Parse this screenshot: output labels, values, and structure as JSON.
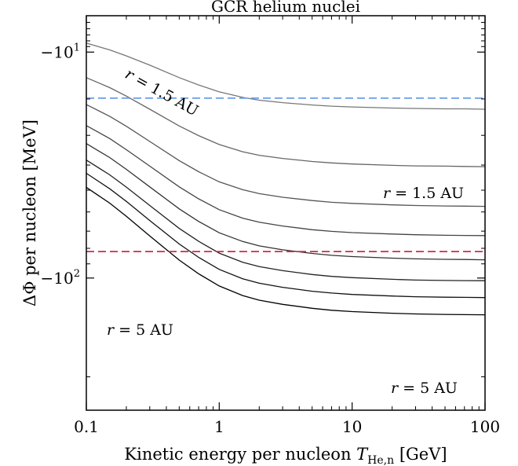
{
  "chart_data": {
    "type": "line",
    "title": "GCR helium nuclei",
    "xlabel": "Kinetic energy per nucleon T_He,n [GeV]",
    "xlabel_main": "Kinetic energy per nucleon ",
    "xlabel_symbol": "T",
    "xlabel_sub": "He,n",
    "xlabel_unit": " [GeV]",
    "ylabel": "ΔΦ per nucleon [MeV]",
    "x_scale": "log",
    "y_scale": "symlog-negative",
    "xlim": [
      0.1,
      100
    ],
    "ylim": [
      -4.0,
      -250.0
    ],
    "x_ticks": [
      {
        "value": 0.1,
        "label": "0.1"
      },
      {
        "value": 1,
        "label": "1"
      },
      {
        "value": 10,
        "label": "10"
      },
      {
        "value": 100,
        "label": "100"
      }
    ],
    "y_ticks": [
      {
        "value": -10,
        "label": "−10",
        "exp": "1"
      },
      {
        "value": -100,
        "label": "−10",
        "exp": "2"
      }
    ],
    "x": [
      0.1,
      0.15,
      0.2,
      0.3,
      0.5,
      0.7,
      1,
      1.5,
      2,
      3,
      5,
      7,
      10,
      20,
      30,
      50,
      70,
      100
    ],
    "series": [
      {
        "color": "#777777",
        "values": [
          -8.4,
          -9.6,
          -10.7,
          -12.5,
          -15.1,
          -16.7,
          -18.3,
          -19.6,
          -20.3,
          -20.9,
          -21.5,
          -21.8,
          -22.0,
          -22.3,
          -22.4,
          -22.5,
          -22.5,
          -22.6
        ]
      },
      {
        "color": "#666666",
        "values": [
          -15.1,
          -17.3,
          -19.3,
          -22.6,
          -27.2,
          -30.1,
          -32.9,
          -35.3,
          -36.5,
          -37.6,
          -38.7,
          -39.2,
          -39.6,
          -40.1,
          -40.3,
          -40.4,
          -40.5,
          -40.6
        ]
      },
      {
        "color": "#555555",
        "values": [
          -21.4,
          -24.5,
          -27.3,
          -31.9,
          -38.4,
          -42.5,
          -46.5,
          -49.8,
          -51.5,
          -53.1,
          -54.6,
          -55.4,
          -55.9,
          -56.6,
          -56.9,
          -57.1,
          -57.2,
          -57.3
        ]
      },
      {
        "color": "#444444",
        "values": [
          -27.1,
          -31.0,
          -34.6,
          -40.4,
          -48.6,
          -53.8,
          -58.9,
          -63.1,
          -65.2,
          -67.2,
          -69.2,
          -70.1,
          -70.8,
          -71.6,
          -72.0,
          -72.3,
          -72.4,
          -72.5
        ]
      },
      {
        "color": "#333333",
        "values": [
          -32.6,
          -37.3,
          -41.6,
          -48.6,
          -58.5,
          -64.8,
          -70.9,
          -75.9,
          -78.5,
          -80.9,
          -83.2,
          -84.4,
          -85.2,
          -86.2,
          -86.7,
          -87.0,
          -87.1,
          -87.3
        ]
      },
      {
        "color": "#222222",
        "values": [
          -38.2,
          -43.7,
          -48.7,
          -56.9,
          -68.5,
          -75.8,
          -83.0,
          -88.9,
          -91.9,
          -94.7,
          -97.4,
          -98.8,
          -99.7,
          -100.9,
          -101.5,
          -101.8,
          -101.9,
          -102.0
        ]
      },
      {
        "color": "#111111",
        "values": [
          -43.1,
          -49.4,
          -55.0,
          -64.3,
          -77.4,
          -85.7,
          -93.8,
          -100.5,
          -103.9,
          -107.0,
          -110.1,
          -111.6,
          -112.7,
          -114.0,
          -114.6,
          -115.0,
          -115.1,
          -115.3
        ]
      },
      {
        "color": "#000000",
        "values": [
          -48.8,
          -55.8,
          -62.2,
          -72.7,
          -87.5,
          -96.9,
          -106.0,
          -113.6,
          -117.5,
          -121.0,
          -124.5,
          -126.2,
          -127.4,
          -128.9,
          -129.6,
          -130.0,
          -130.2,
          -130.4
        ]
      }
    ],
    "reference_lines": [
      {
        "y": -19.8,
        "color": "#6a9ee8",
        "style": "dashed",
        "label": "= 1.5 AU"
      },
      {
        "y": -82.0,
        "color": "#d1284b",
        "style": "dashed",
        "label": "= 5 AU"
      }
    ],
    "annotations": [
      {
        "text": "= 1.5 AU",
        "color": "#777777",
        "rotation": "diagonal"
      },
      {
        "text": "= 5 AU",
        "color": "#000000",
        "rotation": "none"
      }
    ],
    "annotation_symbol": "r",
    "grid": false,
    "legend": "none"
  }
}
